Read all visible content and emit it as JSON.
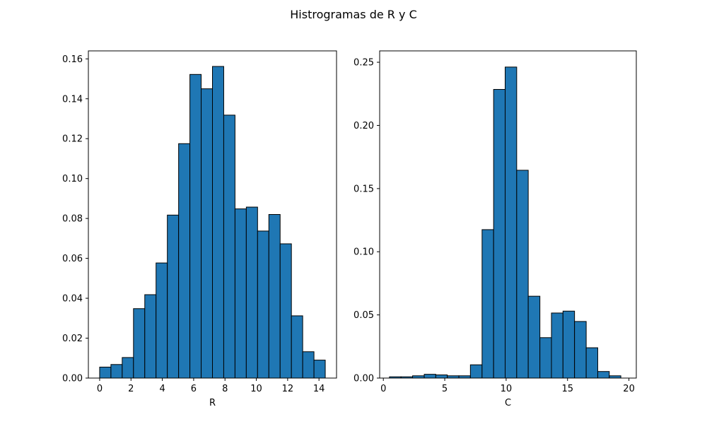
{
  "figure": {
    "title": "Histrogramas de R y C"
  },
  "chart_data": [
    {
      "type": "bar",
      "histogram": true,
      "xlabel": "R",
      "ylabel": "",
      "xlim": [
        -0.72,
        15.12
      ],
      "ylim": [
        0,
        0.164
      ],
      "xticks": [
        0,
        2,
        4,
        6,
        8,
        10,
        12,
        14
      ],
      "yticks": [
        "0.00",
        "0.02",
        "0.04",
        "0.06",
        "0.08",
        "0.10",
        "0.12",
        "0.14",
        "0.16"
      ],
      "bin_edges": [
        0.0,
        0.72,
        1.44,
        2.16,
        2.88,
        3.6,
        4.32,
        5.04,
        5.76,
        6.48,
        7.2,
        7.92,
        8.64,
        9.36,
        10.08,
        10.8,
        11.52,
        12.24,
        12.96,
        13.68,
        14.4
      ],
      "values": [
        0.0055,
        0.0068,
        0.0103,
        0.0348,
        0.0418,
        0.0577,
        0.0817,
        0.1175,
        0.1522,
        0.145,
        0.1562,
        0.1318,
        0.0848,
        0.0857,
        0.0737,
        0.082,
        0.0673,
        0.0312,
        0.0132,
        0.009
      ],
      "bar_color": "#1f77b4",
      "edge_color": "#000000",
      "grid": false
    },
    {
      "type": "bar",
      "histogram": true,
      "xlabel": "C",
      "ylabel": "",
      "xlim": [
        -0.3,
        20.6
      ],
      "ylim": [
        0,
        0.259
      ],
      "xticks": [
        0,
        5,
        10,
        15,
        20
      ],
      "yticks": [
        "0.00",
        "0.05",
        "0.10",
        "0.15",
        "0.20",
        "0.25"
      ],
      "bin_edges": [
        0.5,
        1.44,
        2.38,
        3.33,
        4.27,
        5.21,
        6.15,
        7.09,
        8.04,
        8.98,
        9.92,
        10.86,
        11.8,
        12.75,
        13.69,
        14.63,
        15.57,
        16.52,
        17.46,
        18.4,
        19.34
      ],
      "values": [
        0.001,
        0.001,
        0.0018,
        0.003,
        0.0025,
        0.0018,
        0.0018,
        0.0105,
        0.1175,
        0.2285,
        0.2462,
        0.1645,
        0.0648,
        0.032,
        0.0515,
        0.053,
        0.0448,
        0.024,
        0.0052,
        0.0018
      ],
      "bar_color": "#1f77b4",
      "edge_color": "#000000",
      "grid": false
    }
  ]
}
